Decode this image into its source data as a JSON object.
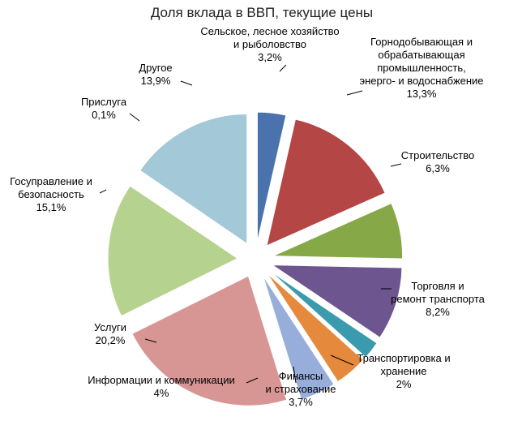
{
  "chart_data": {
    "type": "pie",
    "exploded": true,
    "title": "Доля вклада в ВВП, текущие цены",
    "slices": [
      {
        "label": [
          "Сельское, лесное хозяйство",
          "и рыболовство"
        ],
        "value_label": "3,2%",
        "value": 3.2,
        "color": "#4a72ac"
      },
      {
        "label": [
          "Горнодобывающая и",
          "обрабатывающая",
          "промышленность,",
          "энерго- и водоснабжение"
        ],
        "value_label": "13,3%",
        "value": 13.3,
        "color": "#b44746"
      },
      {
        "label": [
          "Строительство"
        ],
        "value_label": "6,3%",
        "value": 6.3,
        "color": "#86a846"
      },
      {
        "label": [
          "Торговля и",
          "ремонт транспорта"
        ],
        "value_label": "8,2%",
        "value": 8.2,
        "color": "#6d5590"
      },
      {
        "label": [
          "Транспортировка и",
          "хранение"
        ],
        "value_label": "2%",
        "value": 2.0,
        "color": "#3a9aae"
      },
      {
        "label": [
          "Финансы",
          "и страхование"
        ],
        "value_label": "3,7%",
        "value": 3.7,
        "color": "#e58a3c"
      },
      {
        "label": [
          "Информации и коммуникации"
        ],
        "value_label": "4%",
        "value": 4.0,
        "color": "#97aedb"
      },
      {
        "label": [
          "Услуги"
        ],
        "value_label": "20,2%",
        "value": 20.2,
        "color": "#d79594"
      },
      {
        "label": [
          "Госуправление и",
          "безопасность"
        ],
        "value_label": "15,1%",
        "value": 15.1,
        "color": "#b6d28f"
      },
      {
        "label": [
          "Прислуга"
        ],
        "value_label": "0,1%",
        "value": 0.1,
        "color": "#bfbfbf"
      },
      {
        "label": [
          "Другое"
        ],
        "value_label": "13,9%",
        "value": 13.9,
        "color": "#a3c8d8"
      }
    ]
  }
}
